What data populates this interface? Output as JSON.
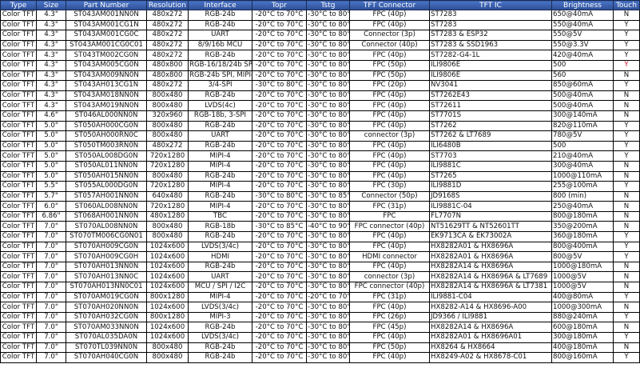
{
  "columns": [
    "Type",
    "Size",
    "Part Number",
    "Resolution",
    "Interface",
    "Topr",
    "Tstg",
    "TFT Connector",
    "TFT IC",
    "Brightness",
    "Touch"
  ],
  "highlight_color": "#e0102a",
  "header_color": "#3b5ca8",
  "rows": [
    [
      "Color TFT",
      "4.3\"",
      "ST043AM001NN0N",
      "480x272",
      "RGB-24b",
      "-20°C to 70°C",
      "-30°C to 80°C",
      "FPC (40p)",
      "ST7283",
      "650@40mA",
      "N"
    ],
    [
      "Color TFT",
      "4.3\"",
      "ST043AM001CG1N",
      "480x272",
      "RGB-24b",
      "-20°C to 70°C",
      "-30°C to 80°C",
      "FPC (40p)",
      "ST7283",
      "550@40mA",
      "Y"
    ],
    [
      "Color TFT",
      "4.3\"",
      "ST043AM001CG0C",
      "480x272",
      "UART",
      "-20°C to 70°C",
      "-30°C to 80°C",
      "Connector (3p)",
      "ST7283 & ESP32",
      "550@5V",
      "Y"
    ],
    [
      "Color TFT",
      "4.3\"",
      "ST043AM001CG0C01",
      "480x272",
      "8/9/16b MCU",
      "-20°C to 70°C",
      "-30°C to 80°C",
      "Connector (40p)",
      "ST7283 & SSD1963",
      "550@3.3V",
      "Y"
    ],
    [
      "Color TFT",
      "4.3\"",
      "ST043TM002CG0N",
      "480x272",
      "RGB-24b",
      "-20°C to 70°C",
      "-30°C to 80°C",
      "FPC (40p)",
      "ST7282-G4-1L",
      "420@40mA",
      "Y"
    ],
    [
      "Color TFT",
      "4.3\"",
      "ST043AM005CG0N",
      "480x800",
      "RGB-16/18/24b SPI",
      "-20°C to 70°C",
      "-30°C to 80°C",
      "FPC (50p)",
      "ILI9806E",
      "500",
      "Y"
    ],
    [
      "Color TFT",
      "4.3\"",
      "ST043AM009NN0N",
      "480x800",
      "RGB-24b SPI, MIPI-2",
      "-20°C to 70°C",
      "-30°C to 80°C",
      "FPC (50p)",
      "ILI9806E",
      "560",
      "N"
    ],
    [
      "Color TFT",
      "4.3\"",
      "ST043AH013CG1N",
      "480x272",
      "3/4-SPI",
      "-30°C to 80°C",
      "-30°C to 80°C",
      "FPC (20p)",
      "NV3041",
      "850@60mA",
      "Y"
    ],
    [
      "Color TFT",
      "4.3\"",
      "ST043AM018NN0N",
      "800x480",
      "RGB-24b",
      "-20°C to 70°C",
      "-30°C to 80°C",
      "FPC (40p)",
      "ST7262E43",
      "500@40mA",
      "N"
    ],
    [
      "Color TFT",
      "4.3\"",
      "ST043AM019NN0N",
      "800x480",
      "LVDS(4c)",
      "-20°C to 70°C",
      "-30°C to 80°C",
      "FPC (40p)",
      "ST72611",
      "500@40mA",
      "N"
    ],
    [
      "Color TFT",
      "4.6\"",
      "ST046AL000NN0N",
      "320x960",
      "RGB-18b, 3-SPI",
      "-20°C to 70°C",
      "-30°C to 80°C",
      "FPC (40p)",
      "ST7701S",
      "300@140mA",
      "N"
    ],
    [
      "Color TFT",
      "5.0\"",
      "ST050AH000CG0N",
      "800x480",
      "RGB-24b",
      "-20°C to 70°C",
      "-30°C to 80°C",
      "FPC (40p)",
      "ST7262",
      "820@110mA",
      "Y"
    ],
    [
      "Color TFT",
      "5.0\"",
      "ST050AH000RN0C",
      "800x480",
      "UART",
      "-20°C to 70°C",
      "-30°C to 80°C",
      "connector (3p)",
      "ST7262 & LT7689",
      "780@5V",
      "Y"
    ],
    [
      "Color TFT",
      "5.0\"",
      "ST050TM003RN0N",
      "480x272",
      "RGB-24b",
      "-20°C to 70°C",
      "-30°C to 80°C",
      "FPC (40p)",
      "ILI6480B",
      "500",
      "Y"
    ],
    [
      "Color TFT",
      "5.0\"",
      "ST050AL008DG0N",
      "720x1280",
      "MIPI-4",
      "-20°C to 70°C",
      "-30°C to 80°C",
      "FPC (40p)",
      "ST7703",
      "210@40mA",
      "Y"
    ],
    [
      "Color TFT",
      "5.0\"",
      "ST050AL011NN0N",
      "720x1280",
      "MIPI-4",
      "-20°C to 70°C",
      "-30°C to 80°C",
      "FPC (40p)",
      "ILI9881C",
      "300@40mA",
      "N"
    ],
    [
      "Color TFT",
      "5.0\"",
      "ST050AH015NN0N",
      "800x480",
      "RGB-24b",
      "-20°C to 70°C",
      "-30°C to 80°C",
      "FPC (40p)",
      "ST7265",
      "1000@110mA",
      "N"
    ],
    [
      "Color TFT",
      "5.5\"",
      "ST055AL000DG0N",
      "720x1280",
      "MIPI-4",
      "-20°C to 70°C",
      "-30°C to 80°C",
      "FPC (30p)",
      "ILI9881D",
      "255@100mA",
      "Y"
    ],
    [
      "Color TFT",
      "5.7\"",
      "ST057AH001NN0N",
      "640x480",
      "RGB-24b",
      "-30°C to 80°C",
      "-30°C to 85°C",
      "Connector (50p)",
      "JD9168S",
      "800 (min)",
      "N"
    ],
    [
      "Color TFT",
      "6.0\"",
      "ST060AL008NN0N",
      "720x1280",
      "MIPI-4",
      "-20°C to 70°C",
      "-30°C to 80°C",
      "FPC (31p)",
      "ILI9881C-04",
      "250@40mA",
      "N"
    ],
    [
      "Color TFT",
      "6.86\"",
      "ST068AH001NN0N",
      "480x1280",
      "TBC",
      "-20°C to 70°C",
      "-30°C to 80°C",
      "FPC",
      "FL7707N",
      "800@180mA",
      "N"
    ],
    [
      "Color TFT",
      "7.0\"",
      "ST070AL008NN0N",
      "800x480",
      "RGB-18b",
      "-30°C to 85°C",
      "-40°C to 90°C",
      "FPC connector (40p)",
      "NT51629TT & NT52601TT",
      "350@200mA",
      "N"
    ],
    [
      "Color TFT",
      "7.0\"",
      "ST070TM006CG0N01",
      "800x480",
      "RGB-24b",
      "-20°C to 70°C",
      "-30°C to 80°C",
      "FPC (40p)",
      "EK9713CA & EK73002A",
      "360@180mA",
      "Y"
    ],
    [
      "Color TFT",
      "7.0\"",
      "ST070AH009CG0N",
      "1024x600",
      "LVDS(3/4c)",
      "-20°C to 70°C",
      "-30°C to 80°C",
      "FPC (40p)",
      "HX8282A01 & HX8696A",
      "800@400mA",
      "Y"
    ],
    [
      "Color TFT",
      "7.0\"",
      "ST070AH009CG0H",
      "1024x600",
      "HDMI",
      "-20°C to 70°C",
      "-30°C to 80°C",
      "HDMI connector",
      "HX8282A01 & HX8696A",
      "800@5V",
      "Y"
    ],
    [
      "Color TFT",
      "7.0\"",
      "ST070AH013NN0N",
      "1024x600",
      "RGB-24b",
      "-20°C to 70°C",
      "-30°C to 80°C",
      "FPC (40p)",
      "HX8282A14 & HX8696A",
      "1000@180mA",
      "N"
    ],
    [
      "Color TFT",
      "7.0\"",
      "ST070AH013NN0C",
      "1024x600",
      "UART",
      "-20°C to 70°C",
      "-30°C to 80°C",
      "connector (3p)",
      "HX8282A14 & HX8696A & LT7689",
      "1000@5V",
      "N"
    ],
    [
      "Color TFT",
      "7.0\"",
      "ST070AH013NN0C01",
      "1024x600",
      "MCU / SPI / I2C",
      "-20°C to 70°C",
      "-30°C to 80°C",
      "FPC connector (40p)",
      "HX8282A14 & HX8696A & LT7381",
      "1000@5V",
      "N"
    ],
    [
      "Color TFT",
      "7.0\"",
      "ST070AM019CG0N",
      "800x1280",
      "MIPI-4",
      "-20°C to 70°C",
      "-20°C to 70°C",
      "FPC (31p)",
      "ILI9881-C04",
      "400@80mA",
      "Y"
    ],
    [
      "Color TFT",
      "7.0\"",
      "ST070AH020NN0N",
      "1024x600",
      "LVDS(3/4c)",
      "-20°C to 70°C",
      "-30°C to 80°C",
      "FPC (40p)",
      "HX8282-A14 & HX8696-A00",
      "1000@300mA",
      "N"
    ],
    [
      "Color TFT",
      "7.0\"",
      "ST070AH032CG0N",
      "800x1280",
      "MIPI-3",
      "-20°C to 70°C",
      "-30°C to 80°C",
      "FPC (26p)",
      "JD9366 / ILI9881",
      "880@240mA",
      "Y"
    ],
    [
      "Color TFT",
      "7.0\"",
      "ST070AM033NN0N",
      "1024x600",
      "RGB-24b",
      "-20°C to 70°C",
      "-30°C to 80°C",
      "FPC (45p)",
      "HX8282A14 & HX8696A",
      "600@180mA",
      "N"
    ],
    [
      "Color TFT",
      "7.0\"",
      "ST070AL035DA0N",
      "1024x600",
      "LVDS(3/4c)",
      "-20°C to 70°C",
      "-30°C to 80°C",
      "FPC (40p)",
      "HX8282A01 & HX8696A01",
      "300@180mA",
      "Y"
    ],
    [
      "Color TFT",
      "7.0\"",
      "ST070TL039NN0N",
      "800x480",
      "RGB-24b",
      "-20°C to 70°C",
      "-30°C to 80°C",
      "FPC (50p)",
      "HX8264 & HX8664",
      "400@180mA",
      "N"
    ],
    [
      "Color TFT",
      "7.0\"",
      "ST070AH040CG0N",
      "800x480",
      "RGB-24b",
      "-20°C to 70°C",
      "-30°C to 80°C",
      "FPC (40p)",
      "HX8249-A02 & HX8678-C01",
      "800@160mA",
      "Y"
    ]
  ],
  "highlighted_cells": [
    {
      "row": 5,
      "col": 10
    }
  ]
}
